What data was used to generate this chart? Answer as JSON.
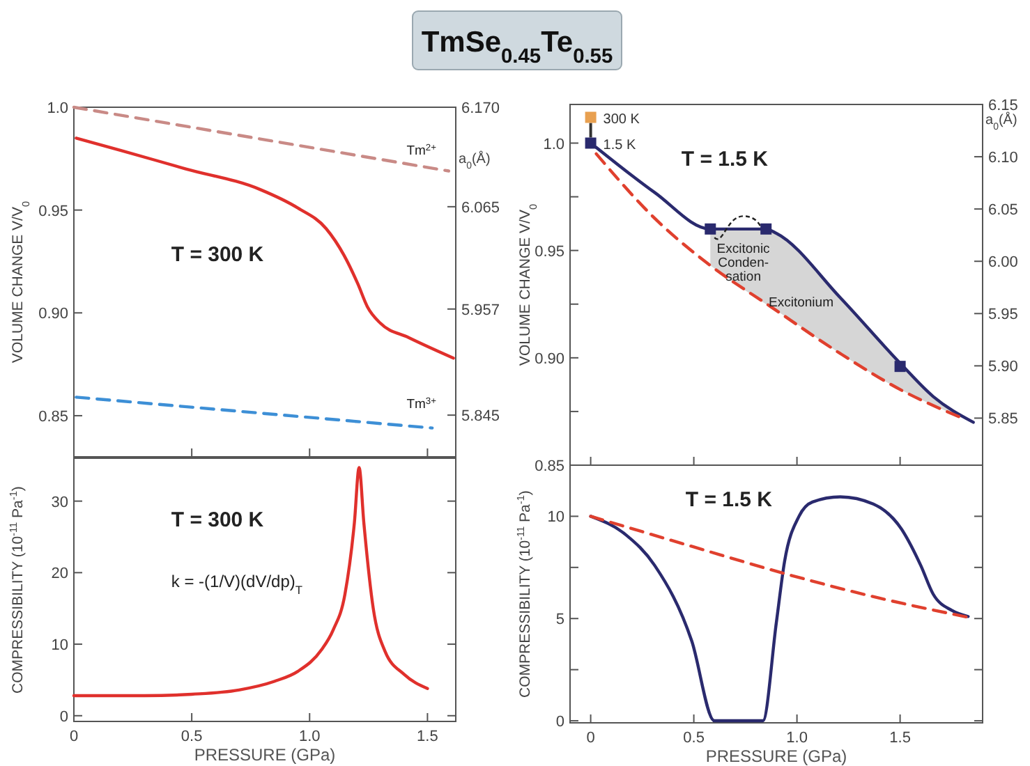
{
  "chart_data": [
    {
      "type": "line",
      "title": "TmSe$_{0.45}$Te$_{0.55}$",
      "ylabel": "VOLUME CHANGE  V/V$_{0}$",
      "y2label": "a$_{0}$(Å)",
      "xlim": [
        0,
        1.62
      ],
      "xticks": [
        {
          "value": 0.5,
          "label": null
        },
        {
          "value": 1,
          "label": null
        },
        {
          "value": 1.5,
          "label": null
        }
      ],
      "ylim": [
        0.83,
        1.0
      ],
      "yticks": [
        {
          "value": 1,
          "label": "1.0"
        },
        0.95,
        {
          "value": 0.9,
          "label": "0.90"
        },
        0.85
      ],
      "y2lim": [
        5.801,
        6.17
      ],
      "y2ticks": [
        {
          "value": 6.17,
          "label": "6.170"
        },
        6.065,
        5.957,
        5.845
      ],
      "tick_labels": "y",
      "annotations": [
        "T = 300 K",
        "Tm$^{2+}$",
        "Tm$^{3+}$"
      ],
      "series": [
        {
          "color": "#c98a86",
          "line_style": "dashed",
          "x": [
            0,
            1.59
          ],
          "values": [
            1.0,
            0.969
          ]
        },
        {
          "color": "#3d8fd6",
          "line_style": "dashed",
          "x": [
            0.01,
            1.52
          ],
          "values": [
            0.859,
            0.844
          ]
        },
        {
          "color": "#e0302c",
          "line_style": "solid",
          "x": [
            0.01,
            0.2,
            0.475,
            0.79,
            0.95,
            1.07,
            1.146,
            1.205,
            1.245,
            1.3,
            1.42,
            1.61
          ],
          "values": [
            0.985,
            0.979,
            0.97,
            0.96,
            0.951,
            0.941,
            0.928,
            0.914,
            0.903,
            0.895,
            0.888,
            0.878
          ]
        }
      ]
    },
    {
      "type": "line",
      "xlabel": "PRESSURE  (GPa)",
      "ylabel": "COMPRESSIBILITY  (10$^{-11}$ Pa$^{-1}$)",
      "xlim": [
        0,
        1.62
      ],
      "xticks": [
        0,
        0.5,
        {
          "value": 1,
          "label": "1.0"
        },
        1.5
      ],
      "ylim": [
        -0.8,
        36
      ],
      "yticks": [
        0,
        10,
        20,
        30
      ],
      "annotations": [
        "T = 300 K",
        "k = -(1/V)(dV/dp)$_{T}$"
      ],
      "series": [
        {
          "color": "#e0302c",
          "line_style": "solid",
          "x": [
            0,
            0.3,
            0.5,
            0.7,
            0.85,
            0.95,
            1.05,
            1.1,
            1.15,
            1.19,
            1.21,
            1.23,
            1.27,
            1.32,
            1.4,
            1.5
          ],
          "values": [
            2.8,
            2.8,
            3.0,
            3.6,
            4.8,
            6.2,
            9.2,
            12,
            17,
            27,
            34.7,
            27,
            15,
            9,
            5.8,
            3.8
          ]
        }
      ]
    },
    {
      "type": "line",
      "ylabel": "VOLUME CHANGE  V/V$_{0}$",
      "y2label": "a$_{0}$(Å)",
      "xlim": [
        -0.1,
        1.9
      ],
      "xticks": [
        {
          "value": 0,
          "label": null
        },
        {
          "value": 0.5,
          "label": null
        },
        {
          "value": 1,
          "label": null
        },
        {
          "value": 1.5,
          "label": null
        }
      ],
      "ylim": [
        0.85,
        1.018
      ],
      "yticks": [
        {
          "value": 1,
          "label": "1.0"
        },
        {
          "value": 0.975,
          "label": null
        },
        0.95,
        {
          "value": 0.925,
          "label": null
        },
        {
          "value": 0.9,
          "label": "0.90"
        },
        {
          "value": 0.875,
          "label": null
        },
        0.85
      ],
      "y2lim": [
        5.805,
        6.15
      ],
      "y2ticks": [
        6.15,
        {
          "value": 6.1,
          "label": "6.10"
        },
        6.05,
        {
          "value": 6,
          "label": "6.00"
        },
        5.95,
        {
          "value": 5.9,
          "label": "5.90"
        },
        5.85
      ],
      "tick_labels": "y",
      "annotations": [
        "T = 1.5 K",
        "Excitonic\nConden-\nsation",
        "Excitonium"
      ],
      "series": [
        {
          "color": "#2a2a6e",
          "line_style": "solid",
          "x": [
            0.027,
            0.31,
            0.58,
            0.85,
            0.9,
            1.21,
            1.505,
            1.66,
            1.855
          ],
          "values": [
            0.998,
            0.977,
            0.96,
            0.96,
            0.958,
            0.928,
            0.897,
            0.882,
            0.87
          ],
          "lower": [
            null,
            null,
            0.943,
            0.925,
            0.922,
            0.902,
            0.885,
            0.878,
            0.87
          ],
          "upper": [
            null,
            null,
            0.96,
            0.96,
            0.958,
            0.928,
            0.897,
            0.882,
            0.87
          ]
        },
        {
          "color": "#e0402e",
          "line_style": "dashed",
          "x": [
            0.027,
            0.31,
            0.58,
            0.87,
            1.21,
            1.505,
            1.8
          ],
          "values": [
            0.995,
            0.965,
            0.943,
            0.924,
            0.902,
            0.885,
            0.872
          ]
        },
        {
          "type": "scatter",
          "name": "300 K",
          "color": "#e8a050",
          "marker": "square",
          "x": [
            0
          ],
          "values": [
            1.012
          ]
        },
        {
          "type": "scatter",
          "name": "1.5 K",
          "color": "#2a2a6e",
          "marker": "square",
          "x": [
            0,
            0.58,
            0.85,
            1.5
          ],
          "values": [
            1.0,
            0.96,
            0.96,
            0.896
          ]
        }
      ]
    },
    {
      "type": "line",
      "xlabel": "PRESSURE  (GPa)",
      "ylabel": "COMPRESSIBILITY  (10$^{-11}$ Pa$^{-1}$)",
      "xlim": [
        -0.1,
        1.9
      ],
      "xticks": [
        0,
        0.5,
        {
          "value": 1,
          "label": "1.0"
        },
        1.5
      ],
      "ylim": [
        -0.1,
        12.5
      ],
      "yticks": [
        0,
        {
          "value": 2.5,
          "label": null
        },
        5,
        {
          "value": 7.5,
          "label": null
        },
        10
      ],
      "annotations": [
        "T = 1.5 K"
      ],
      "series": [
        {
          "color": "#2a2a6e",
          "line_style": "solid",
          "x": [
            0,
            0.17,
            0.31,
            0.49,
            0.6,
            0.835,
            0.9,
            0.94,
            1.01,
            1.075,
            1.21,
            1.37,
            1.505,
            1.6,
            1.66,
            1.75,
            1.83
          ],
          "values": [
            10,
            9.1,
            7.6,
            3.9,
            0,
            0,
            4.8,
            7.8,
            10,
            10.7,
            10.95,
            10.6,
            9.4,
            7.6,
            6.2,
            5.4,
            5.1
          ]
        },
        {
          "color": "#e0402e",
          "line_style": "dashed",
          "x": [
            0,
            0.5,
            0.94,
            1.4,
            1.83
          ],
          "values": [
            10,
            8.5,
            7.2,
            6.0,
            5.06
          ]
        }
      ]
    }
  ]
}
